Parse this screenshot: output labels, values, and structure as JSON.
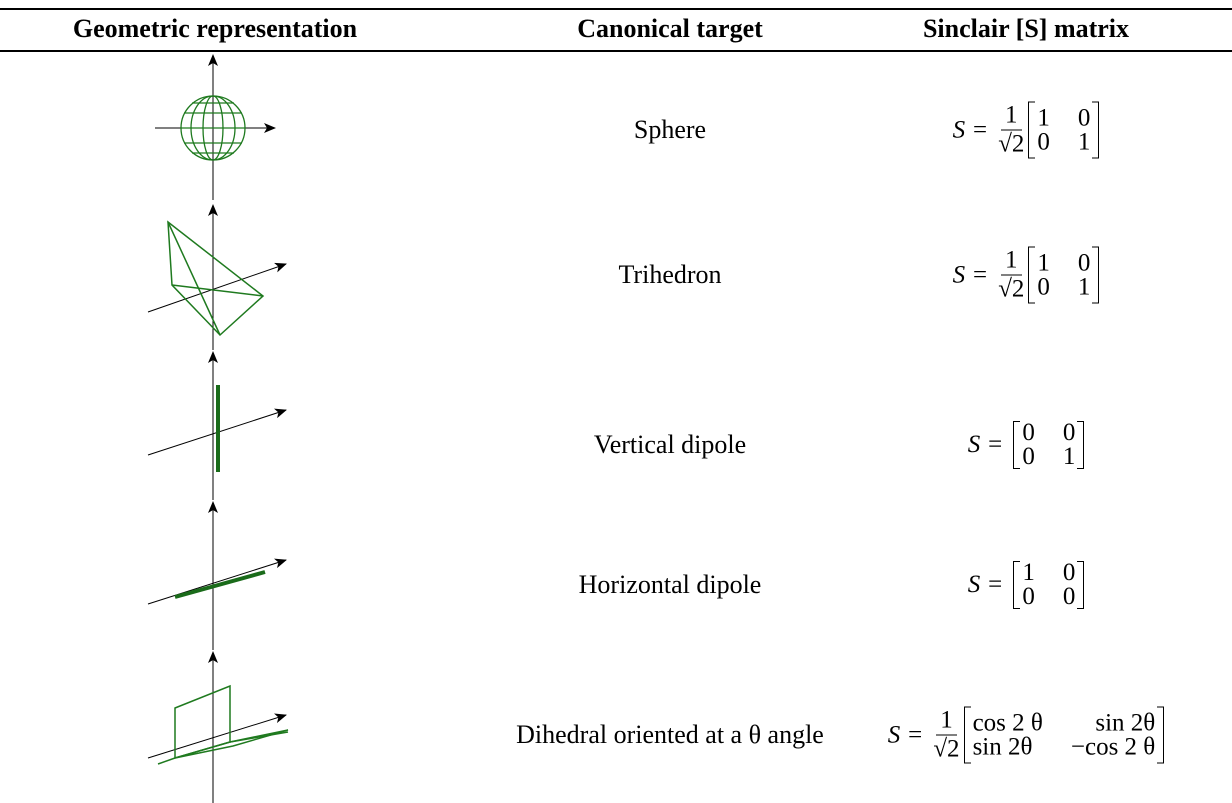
{
  "table": {
    "headers": [
      "Geometric representation",
      "Canonical target",
      "Sinclair [S] matrix"
    ],
    "rows": [
      {
        "target": "Sphere",
        "matrix": {
          "lhs": "S =",
          "numerator": "1",
          "denominator": "√2",
          "cells": [
            [
              "1",
              "0"
            ],
            [
              "0",
              "1"
            ]
          ]
        }
      },
      {
        "target": "Trihedron",
        "matrix": {
          "lhs": "S =",
          "numerator": "1",
          "denominator": "√2",
          "cells": [
            [
              "1",
              "0"
            ],
            [
              "0",
              "1"
            ]
          ]
        }
      },
      {
        "target": "Vertical dipole",
        "matrix": {
          "lhs": "S =",
          "cells": [
            [
              "0",
              "0"
            ],
            [
              "0",
              "1"
            ]
          ]
        }
      },
      {
        "target": "Horizontal dipole",
        "matrix": {
          "lhs": "S =",
          "cells": [
            [
              "1",
              "0"
            ],
            [
              "0",
              "0"
            ]
          ]
        }
      },
      {
        "target": "Dihedral oriented at a θ angle",
        "matrix": {
          "lhs": "S =",
          "numerator": "1",
          "denominator": "√2",
          "cells": [
            [
              "cos 2 θ",
              "sin 2θ"
            ],
            [
              "sin 2θ",
              "−cos 2 θ"
            ]
          ]
        }
      }
    ]
  }
}
